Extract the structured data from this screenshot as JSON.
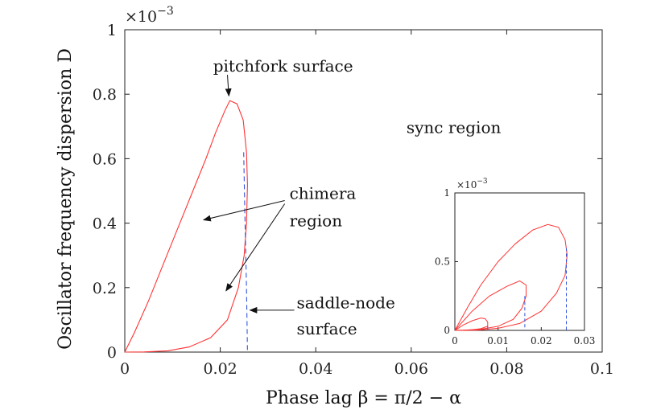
{
  "chart_data": {
    "type": "line",
    "xlabel": "Phase lag β = π/2 − α",
    "ylabel": "Oscillator frequency dispersion D",
    "exponent_label": "×10",
    "exponent_sup": "−3",
    "xlim": [
      0,
      0.1
    ],
    "ylim": [
      0,
      1
    ],
    "x_ticks": [
      "0",
      "0.02",
      "0.04",
      "0.06",
      "0.08",
      "0.1"
    ],
    "y_ticks": [
      "0",
      "0.2",
      "0.4",
      "0.6",
      "0.8",
      "1"
    ],
    "grid": false,
    "series": [
      {
        "color": "#ff3333",
        "style": "solid",
        "points": [
          [
            0,
            0
          ],
          [
            0.002,
            0.06
          ],
          [
            0.005,
            0.16
          ],
          [
            0.008,
            0.27
          ],
          [
            0.011,
            0.38
          ],
          [
            0.014,
            0.49
          ],
          [
            0.017,
            0.6
          ],
          [
            0.019,
            0.68
          ],
          [
            0.021,
            0.75
          ],
          [
            0.022,
            0.78
          ],
          [
            0.0235,
            0.77
          ],
          [
            0.0248,
            0.72
          ],
          [
            0.0255,
            0.62
          ],
          [
            0.0257,
            0.52
          ],
          [
            0.0255,
            0.4
          ],
          [
            0.025,
            0.3
          ],
          [
            0.0238,
            0.2
          ],
          [
            0.0215,
            0.1
          ],
          [
            0.018,
            0.045
          ],
          [
            0.0135,
            0.016
          ],
          [
            0.009,
            0.004
          ],
          [
            0.004,
            0.0005
          ],
          [
            0,
            0
          ]
        ]
      },
      {
        "color": "#3355dd",
        "style": "dashed",
        "points": [
          [
            0.0249,
            0.62
          ],
          [
            0.0252,
            0.4
          ],
          [
            0.0255,
            0.2
          ],
          [
            0.0257,
            0
          ]
        ]
      }
    ],
    "annotations": [
      {
        "text": "pitchfork surface",
        "x": 0.0185,
        "y": 0.87
      },
      {
        "text": "sync region",
        "x": 0.059,
        "y": 0.68
      },
      {
        "text": "chimera",
        "x": 0.0345,
        "y": 0.475
      },
      {
        "text": "region",
        "x": 0.0345,
        "y": 0.39
      },
      {
        "text": "saddle-node",
        "x": 0.036,
        "y": 0.136
      },
      {
        "text": "surface",
        "x": 0.036,
        "y": 0.055
      }
    ],
    "arrows": [
      {
        "from": [
          0.0215,
          0.86
        ],
        "to": [
          0.0218,
          0.795
        ]
      },
      {
        "from": [
          0.0335,
          0.47
        ],
        "to": [
          0.0165,
          0.41
        ]
      },
      {
        "from": [
          0.0335,
          0.46
        ],
        "to": [
          0.0212,
          0.19
        ]
      },
      {
        "from": [
          0.0355,
          0.13
        ],
        "to": [
          0.0262,
          0.13
        ]
      }
    ],
    "inset": {
      "xlim": [
        0,
        0.03
      ],
      "ylim": [
        0,
        1
      ],
      "x_ticks": [
        "0",
        "0.01",
        "0.02",
        "0.03"
      ],
      "y_ticks": [
        "0",
        "0.5",
        "1"
      ],
      "exponent_label": "×10",
      "exponent_sup": "−3",
      "series": [
        {
          "color": "#ff3333",
          "style": "solid",
          "points": [
            [
              0,
              0
            ],
            [
              0.003,
              0.17
            ],
            [
              0.006,
              0.33
            ],
            [
              0.01,
              0.5
            ],
            [
              0.014,
              0.63
            ],
            [
              0.018,
              0.73
            ],
            [
              0.0215,
              0.77
            ],
            [
              0.024,
              0.75
            ],
            [
              0.0255,
              0.66
            ],
            [
              0.026,
              0.55
            ],
            [
              0.0255,
              0.4
            ],
            [
              0.0235,
              0.27
            ],
            [
              0.02,
              0.14
            ],
            [
              0.015,
              0.05
            ],
            [
              0.01,
              0.015
            ],
            [
              0.005,
              0.002
            ],
            [
              0,
              0
            ]
          ]
        },
        {
          "color": "#ff3333",
          "style": "solid",
          "points": [
            [
              0,
              0
            ],
            [
              0.004,
              0.14
            ],
            [
              0.008,
              0.25
            ],
            [
              0.012,
              0.32
            ],
            [
              0.015,
              0.36
            ],
            [
              0.0165,
              0.33
            ],
            [
              0.0165,
              0.25
            ],
            [
              0.0155,
              0.16
            ],
            [
              0.0135,
              0.08
            ],
            [
              0.01,
              0.03
            ],
            [
              0.006,
              0.008
            ],
            [
              0.002,
              0.001
            ],
            [
              0,
              0
            ]
          ]
        },
        {
          "color": "#ff3333",
          "style": "solid",
          "points": [
            [
              0,
              0
            ],
            [
              0.002,
              0.04
            ],
            [
              0.004,
              0.07
            ],
            [
              0.006,
              0.09
            ],
            [
              0.007,
              0.085
            ],
            [
              0.0076,
              0.06
            ],
            [
              0.0076,
              0.03
            ],
            [
              0.006,
              0.012
            ],
            [
              0.004,
              0.004
            ],
            [
              0.002,
              0.001
            ],
            [
              0,
              0
            ]
          ]
        },
        {
          "color": "#3355dd",
          "style": "dashed",
          "points": [
            [
              0.0258,
              0.6
            ],
            [
              0.0258,
              0
            ]
          ]
        },
        {
          "color": "#3355dd",
          "style": "dashed",
          "points": [
            [
              0.0162,
              0.25
            ],
            [
              0.0162,
              0
            ]
          ]
        },
        {
          "color": "#3355dd",
          "style": "dashed",
          "points": [
            [
              0.0076,
              0.03
            ],
            [
              0.0076,
              0
            ]
          ]
        }
      ]
    }
  }
}
